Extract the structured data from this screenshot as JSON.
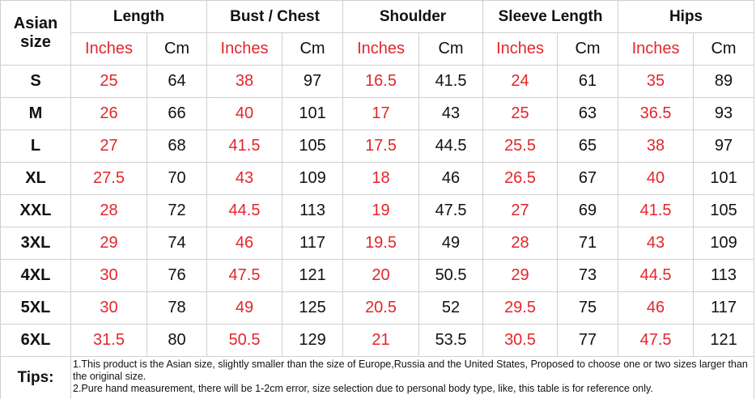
{
  "header": {
    "size_label": "Asian size",
    "groups": [
      {
        "name": "Length",
        "units": [
          "Inches",
          "Cm"
        ]
      },
      {
        "name": "Bust / Chest",
        "units": [
          "Inches",
          "Cm"
        ]
      },
      {
        "name": "Shoulder",
        "units": [
          "Inches",
          "Cm"
        ]
      },
      {
        "name": "Sleeve Length",
        "units": [
          "Inches",
          "Cm"
        ]
      },
      {
        "name": "Hips",
        "units": [
          "Inches",
          "Cm"
        ]
      }
    ]
  },
  "rows": [
    {
      "size": "S",
      "values": [
        "25",
        "64",
        "38",
        "97",
        "16.5",
        "41.5",
        "24",
        "61",
        "35",
        "89"
      ]
    },
    {
      "size": "M",
      "values": [
        "26",
        "66",
        "40",
        "101",
        "17",
        "43",
        "25",
        "63",
        "36.5",
        "93"
      ]
    },
    {
      "size": "L",
      "values": [
        "27",
        "68",
        "41.5",
        "105",
        "17.5",
        "44.5",
        "25.5",
        "65",
        "38",
        "97"
      ]
    },
    {
      "size": "XL",
      "values": [
        "27.5",
        "70",
        "43",
        "109",
        "18",
        "46",
        "26.5",
        "67",
        "40",
        "101"
      ]
    },
    {
      "size": "XXL",
      "values": [
        "28",
        "72",
        "44.5",
        "113",
        "19",
        "47.5",
        "27",
        "69",
        "41.5",
        "105"
      ]
    },
    {
      "size": "3XL",
      "values": [
        "29",
        "74",
        "46",
        "117",
        "19.5",
        "49",
        "28",
        "71",
        "43",
        "109"
      ]
    },
    {
      "size": "4XL",
      "values": [
        "30",
        "76",
        "47.5",
        "121",
        "20",
        "50.5",
        "29",
        "73",
        "44.5",
        "113"
      ]
    },
    {
      "size": "5XL",
      "values": [
        "30",
        "78",
        "49",
        "125",
        "20.5",
        "52",
        "29.5",
        "75",
        "46",
        "117"
      ]
    },
    {
      "size": "6XL",
      "values": [
        "31.5",
        "80",
        "50.5",
        "129",
        "21",
        "53.5",
        "30.5",
        "77",
        "47.5",
        "121"
      ]
    }
  ],
  "tips": {
    "label": "Tips:",
    "lines": [
      "1.This product is the Asian size, slightly smaller than the size of Europe,Russia and the United States, Proposed to choose one or two sizes larger than the original size.",
      "2.Pure hand measurement, there will be 1-2cm error, size selection due to personal body type, like, this table is for reference only."
    ]
  }
}
